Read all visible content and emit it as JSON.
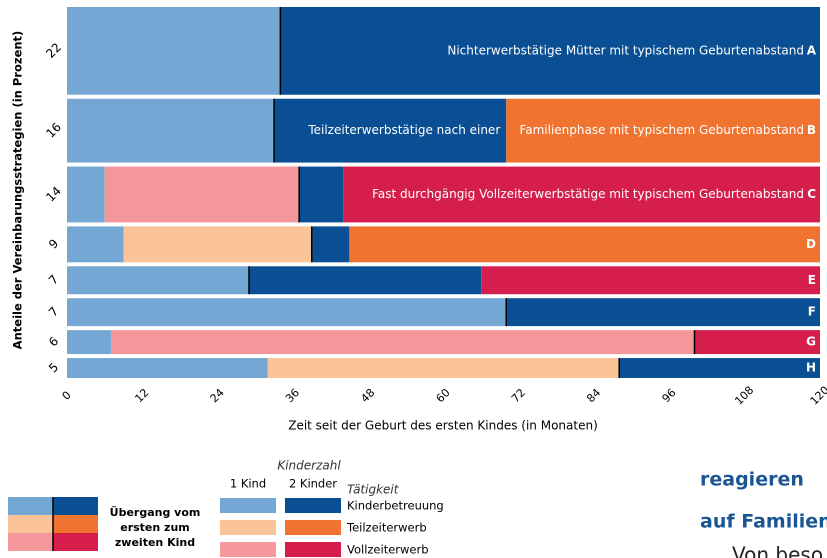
{
  "chart_data": {
    "type": "sequence",
    "y_label": "Anteile der Vereinbarungsstrategien (in Prozent)",
    "x_label": "Zeit seit der Geburt des ersten Kindes (in Monaten)",
    "xlim": [
      0,
      120
    ],
    "xticks": [
      0,
      12,
      24,
      36,
      48,
      60,
      72,
      84,
      96,
      108,
      120
    ],
    "rows": [
      {
        "share": 22,
        "letter": "A",
        "annotations": [
          "Nichterwerbstätige Mütter mit typischem Geburtenabstand"
        ],
        "segments": [
          {
            "value": 34,
            "color": "#74a7d3"
          },
          {
            "value": 86,
            "color": "#0a4f93"
          }
        ]
      },
      {
        "share": 16,
        "letter": "B",
        "annotations": [
          "Teilzeiterwerbstätige nach einer",
          "Familienphase mit typischem Geburtenabstand"
        ],
        "segments": [
          {
            "value": 33,
            "color": "#74a7d3"
          },
          {
            "value": 37,
            "color": "#0a4f93"
          },
          {
            "value": 50,
            "color": "#f07430"
          }
        ]
      },
      {
        "share": 14,
        "letter": "C",
        "annotations": [
          "Fast durchgängig Vollzeiterwerbstätige mit typischem Geburtenabstand"
        ],
        "segments": [
          {
            "value": 6,
            "color": "#74a7d3"
          },
          {
            "value": 31,
            "color": "#f4979a"
          },
          {
            "value": 7,
            "color": "#0a4f93"
          },
          {
            "value": 76,
            "color": "#d51e4b"
          }
        ]
      },
      {
        "share": 9,
        "letter": "D",
        "annotations": [],
        "segments": [
          {
            "value": 9,
            "color": "#74a7d3"
          },
          {
            "value": 30,
            "color": "#fbc498"
          },
          {
            "value": 6,
            "color": "#0a4f93"
          },
          {
            "value": 75,
            "color": "#f07430"
          }
        ]
      },
      {
        "share": 7,
        "letter": "E",
        "annotations": [],
        "segments": [
          {
            "value": 29,
            "color": "#74a7d3"
          },
          {
            "value": 37,
            "color": "#0a4f93"
          },
          {
            "value": 54,
            "color": "#d51e4b"
          }
        ]
      },
      {
        "share": 7,
        "letter": "F",
        "annotations": [],
        "segments": [
          {
            "value": 70,
            "color": "#74a7d3"
          },
          {
            "value": 50,
            "color": "#0a4f93"
          }
        ]
      },
      {
        "share": 6,
        "letter": "G",
        "annotations": [],
        "segments": [
          {
            "value": 7,
            "color": "#74a7d3"
          },
          {
            "value": 93,
            "color": "#f4979a"
          },
          {
            "value": 20,
            "color": "#d51e4b"
          }
        ]
      },
      {
        "share": 5,
        "letter": "H",
        "annotations": [],
        "segments": [
          {
            "value": 32,
            "color": "#74a7d3"
          },
          {
            "value": 56,
            "color": "#fbc498"
          },
          {
            "value": 32,
            "color": "#0a4f93"
          }
        ]
      }
    ],
    "legend": {
      "title": "Kinderzahl",
      "columns": [
        "1 Kind",
        "2 Kinder"
      ],
      "activity_title": "Tätigkeit",
      "activities": [
        {
          "name": "Kinderbetreuung",
          "colors": [
            "#74a7d3",
            "#0a4f93"
          ]
        },
        {
          "name": "Teilzeiterwerb",
          "colors": [
            "#fbc498",
            "#f07430"
          ]
        },
        {
          "name": "Vollzeiterwerb",
          "colors": [
            "#f4979a",
            "#d51e4b"
          ]
        }
      ],
      "transition_lines": [
        "Übergang vom",
        "ersten zum",
        "zweiten Kind"
      ]
    }
  },
  "background_text": [
    "reagieren",
    "auf Familien",
    "Von beso"
  ]
}
